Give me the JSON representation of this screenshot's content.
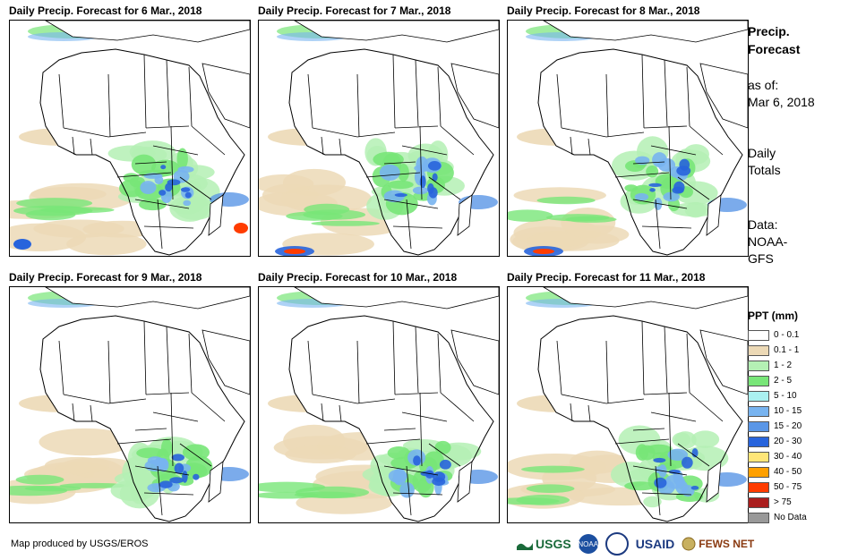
{
  "panels": [
    {
      "title": "Daily Precip. Forecast for 6 Mar., 2018"
    },
    {
      "title": "Daily Precip. Forecast for 7 Mar., 2018"
    },
    {
      "title": "Daily Precip. Forecast for 8 Mar., 2018"
    },
    {
      "title": "Daily Precip. Forecast for 9 Mar., 2018"
    },
    {
      "title": "Daily Precip. Forecast for 10 Mar., 2018"
    },
    {
      "title": "Daily Precip. Forecast for 11 Mar., 2018"
    }
  ],
  "side": {
    "heading_line1": "Precip.",
    "heading_line2": "Forecast",
    "asof_label": "as of:",
    "asof_date": "Mar 6, 2018",
    "totals_line1": "Daily",
    "totals_line2": "Totals",
    "data_label": "Data:",
    "data_line1": "NOAA-",
    "data_line2": "GFS"
  },
  "legend": {
    "title": "PPT (mm)",
    "items": [
      {
        "label": "0 - 0.1",
        "color": "#ffffff"
      },
      {
        "label": "0.1 - 1",
        "color": "#ecd9b6"
      },
      {
        "label": "1 - 2",
        "color": "#b4f0b4"
      },
      {
        "label": "2 - 5",
        "color": "#78e678"
      },
      {
        "label": "5 - 10",
        "color": "#aaf0f0"
      },
      {
        "label": "10 - 15",
        "color": "#78b4f0"
      },
      {
        "label": "15 - 20",
        "color": "#5a96e6"
      },
      {
        "label": "20 - 30",
        "color": "#2864dc"
      },
      {
        "label": "30 - 40",
        "color": "#ffe678"
      },
      {
        "label": "40 - 50",
        "color": "#ffa000"
      },
      {
        "label": "50 - 75",
        "color": "#ff3c00"
      },
      {
        "label": "> 75",
        "color": "#aa1e1e"
      },
      {
        "label": "No Data",
        "color": "#999999"
      }
    ]
  },
  "footer": {
    "credit": "Map produced by USGS/EROS",
    "logos": [
      "USGS",
      "NOAA",
      "USAID",
      "FEWS NET"
    ]
  }
}
